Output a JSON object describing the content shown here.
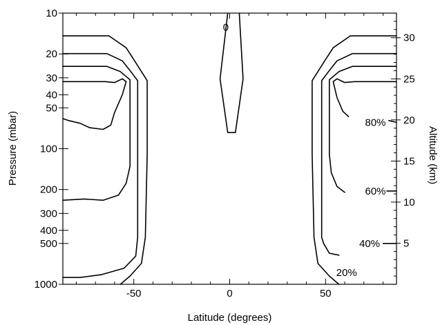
{
  "chart_data": {
    "type": "contour",
    "xlabel": "Latitude (degrees)",
    "ylabel": "Pressure (mbar)",
    "y2label": "Altitude (km)",
    "xlim": [
      -87,
      87
    ],
    "ylim_pressure_mbar": [
      1000,
      10
    ],
    "y_scale": "log",
    "ylim_altitude_km": [
      0,
      33
    ],
    "x_ticks": [
      -50,
      0,
      50
    ],
    "x_tick_labels": [
      "-50",
      "0",
      "50"
    ],
    "y_ticks_pressure": [
      10,
      20,
      30,
      40,
      50,
      100,
      200,
      300,
      400,
      500,
      1000
    ],
    "y_tick_labels_pressure": [
      "10",
      "20",
      "30",
      "40",
      "50",
      "100",
      "200",
      "300",
      "400",
      "500",
      "1000"
    ],
    "y2_ticks_km": [
      5,
      10,
      15,
      20,
      25,
      30
    ],
    "y2_tick_labels_km": [
      "5",
      "10",
      "15",
      "20",
      "25",
      "30"
    ],
    "grid": false,
    "legend": "none",
    "contour_labels": [
      {
        "text": "0",
        "lat": -2,
        "p": 12.7
      },
      {
        "text": "20%",
        "lat": 61,
        "p": 820
      },
      {
        "text": "40%",
        "lat": 73,
        "p": 500
      },
      {
        "text": "60%",
        "lat": 76,
        "p": 205
      },
      {
        "text": "80%",
        "lat": 76,
        "p": 64
      }
    ],
    "contours": [
      {
        "level": "0",
        "points": [
          [
            -1,
            10
          ],
          [
            -5,
            30.5
          ],
          [
            -1,
            76
          ],
          [
            3,
            76
          ],
          [
            7,
            30.5
          ],
          [
            5,
            10
          ]
        ]
      },
      {
        "level": "20%",
        "side": "left",
        "points": [
          [
            -88,
            14.7
          ],
          [
            -63,
            14.7
          ],
          [
            -54,
            18
          ],
          [
            -50,
            22
          ],
          [
            -46,
            27
          ],
          [
            -43,
            31.5
          ],
          [
            -43,
            110
          ],
          [
            -44,
            450
          ],
          [
            -46,
            700
          ],
          [
            -52,
            870
          ],
          [
            -57,
            1000
          ]
        ]
      },
      {
        "level": "40%",
        "side": "left",
        "points": [
          [
            -88,
            19.9
          ],
          [
            -64,
            19.9
          ],
          [
            -56,
            22.5
          ],
          [
            -52,
            26.5
          ],
          [
            -48,
            31.5
          ],
          [
            -48,
            450
          ],
          [
            -49,
            620
          ],
          [
            -55,
            760
          ],
          [
            -67,
            850
          ],
          [
            -78,
            890
          ],
          [
            -88,
            890
          ]
        ]
      },
      {
        "level": "60%",
        "side": "left",
        "points": [
          [
            -88,
            24.7
          ],
          [
            -64,
            24.7
          ],
          [
            -57,
            27
          ],
          [
            -52,
            31
          ],
          [
            -52,
            135
          ],
          [
            -54,
            180
          ],
          [
            -58,
            220
          ],
          [
            -66,
            240
          ],
          [
            -76,
            235
          ],
          [
            -88,
            240
          ]
        ]
      },
      {
        "level": "80%",
        "side": "left",
        "points": [
          [
            -88,
            32
          ],
          [
            -65,
            32
          ],
          [
            -60,
            32.5
          ],
          [
            -56,
            30.5
          ],
          [
            -54,
            32
          ],
          [
            -56,
            40
          ],
          [
            -60,
            54
          ],
          [
            -62,
            67
          ],
          [
            -66,
            72
          ],
          [
            -73,
            70
          ],
          [
            -78,
            65
          ],
          [
            -84,
            62
          ],
          [
            -88,
            60
          ]
        ]
      },
      {
        "level": "20%",
        "side": "right",
        "points": [
          [
            88,
            14.7
          ],
          [
            63,
            14.7
          ],
          [
            54,
            18
          ],
          [
            50,
            22
          ],
          [
            46,
            27
          ],
          [
            43,
            31.5
          ],
          [
            43,
            110
          ],
          [
            44,
            450
          ],
          [
            46,
            700
          ],
          [
            52,
            870
          ],
          [
            57,
            1000
          ]
        ]
      },
      {
        "level": "40%",
        "side": "right",
        "points": [
          [
            88,
            19.9
          ],
          [
            64,
            19.9
          ],
          [
            56,
            22.5
          ],
          [
            52,
            26.5
          ],
          [
            48,
            31.5
          ],
          [
            48,
            450
          ],
          [
            49,
            500
          ],
          [
            52,
            590
          ],
          [
            57,
            610
          ]
        ]
      },
      {
        "level": "60%",
        "side": "right",
        "points": [
          [
            88,
            24.7
          ],
          [
            64,
            24.7
          ],
          [
            57,
            27
          ],
          [
            52,
            31
          ],
          [
            52,
            110
          ],
          [
            53,
            150
          ],
          [
            56,
            190
          ],
          [
            60,
            210
          ]
        ]
      },
      {
        "level": "80%",
        "side": "right",
        "points": [
          [
            88,
            32
          ],
          [
            65,
            32
          ],
          [
            60,
            32.5
          ],
          [
            56,
            30.5
          ],
          [
            54,
            32
          ],
          [
            56,
            42
          ],
          [
            59,
            53
          ],
          [
            62,
            58
          ]
        ]
      }
    ],
    "label_leaders": [
      {
        "level": "40%",
        "points": [
          [
            80,
            500
          ],
          [
            88,
            500
          ]
        ]
      },
      {
        "level": "60%",
        "points": [
          [
            82,
            205
          ],
          [
            88,
            205
          ]
        ]
      },
      {
        "level": "80%",
        "points": [
          [
            83,
            62
          ],
          [
            88,
            64
          ]
        ]
      }
    ]
  }
}
